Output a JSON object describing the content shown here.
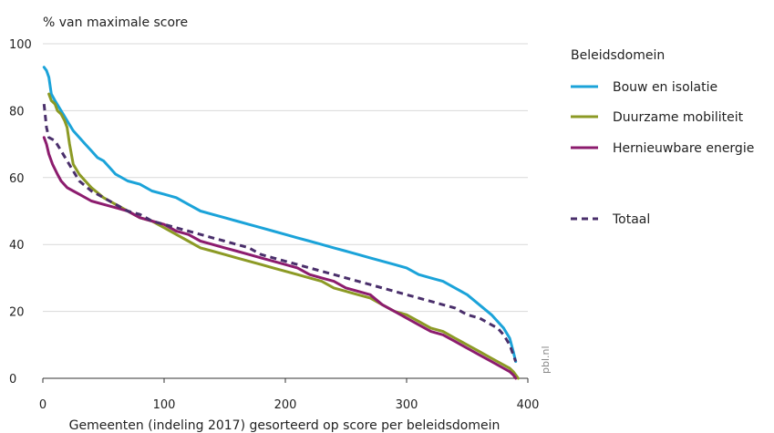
{
  "chart_data": {
    "type": "line",
    "ylabel": "% van maximale score",
    "xlabel": "Gemeenten (indeling 2017) gesorteerd op score per beleidsdomein",
    "xlim": [
      0,
      400
    ],
    "ylim": [
      0,
      100
    ],
    "x_ticks": [
      0,
      100,
      200,
      300,
      400
    ],
    "y_ticks": [
      0,
      20,
      40,
      60,
      80,
      100
    ],
    "grid": "horizontal",
    "legend_position": "right",
    "legend_title": "Beleidsdomein",
    "credit": "pbl.nl",
    "series": [
      {
        "name": "Bouw en isolatie",
        "color": "#1ba3d9",
        "dash": false,
        "points": [
          [
            1,
            93
          ],
          [
            3,
            92
          ],
          [
            5,
            90
          ],
          [
            7,
            85
          ],
          [
            10,
            83
          ],
          [
            15,
            80
          ],
          [
            20,
            77
          ],
          [
            25,
            74
          ],
          [
            30,
            72
          ],
          [
            35,
            70
          ],
          [
            40,
            68
          ],
          [
            45,
            66
          ],
          [
            50,
            65
          ],
          [
            55,
            63
          ],
          [
            60,
            61
          ],
          [
            70,
            59
          ],
          [
            80,
            58
          ],
          [
            90,
            56
          ],
          [
            100,
            55
          ],
          [
            110,
            54
          ],
          [
            120,
            52
          ],
          [
            130,
            50
          ],
          [
            140,
            49
          ],
          [
            150,
            48
          ],
          [
            160,
            47
          ],
          [
            170,
            46
          ],
          [
            180,
            45
          ],
          [
            190,
            44
          ],
          [
            200,
            43
          ],
          [
            210,
            42
          ],
          [
            220,
            41
          ],
          [
            230,
            40
          ],
          [
            240,
            39
          ],
          [
            250,
            38
          ],
          [
            260,
            37
          ],
          [
            270,
            36
          ],
          [
            280,
            35
          ],
          [
            290,
            34
          ],
          [
            300,
            33
          ],
          [
            310,
            31
          ],
          [
            320,
            30
          ],
          [
            330,
            29
          ],
          [
            340,
            27
          ],
          [
            350,
            25
          ],
          [
            360,
            22
          ],
          [
            370,
            19
          ],
          [
            380,
            15
          ],
          [
            385,
            12
          ],
          [
            388,
            8
          ],
          [
            390,
            5
          ]
        ]
      },
      {
        "name": "Duurzame mobiliteit",
        "color": "#8c9a25",
        "dash": false,
        "points": [
          [
            5,
            85
          ],
          [
            7,
            83
          ],
          [
            10,
            82
          ],
          [
            12,
            80
          ],
          [
            15,
            79
          ],
          [
            18,
            77
          ],
          [
            20,
            75
          ],
          [
            22,
            70
          ],
          [
            25,
            64
          ],
          [
            30,
            61
          ],
          [
            35,
            59
          ],
          [
            40,
            57
          ],
          [
            50,
            54
          ],
          [
            60,
            52
          ],
          [
            70,
            50
          ],
          [
            80,
            48
          ],
          [
            90,
            47
          ],
          [
            100,
            45
          ],
          [
            110,
            43
          ],
          [
            120,
            41
          ],
          [
            130,
            39
          ],
          [
            140,
            38
          ],
          [
            150,
            37
          ],
          [
            160,
            36
          ],
          [
            170,
            35
          ],
          [
            180,
            34
          ],
          [
            190,
            33
          ],
          [
            200,
            32
          ],
          [
            210,
            31
          ],
          [
            220,
            30
          ],
          [
            230,
            29
          ],
          [
            240,
            27
          ],
          [
            250,
            26
          ],
          [
            260,
            25
          ],
          [
            270,
            24
          ],
          [
            280,
            22
          ],
          [
            290,
            20
          ],
          [
            300,
            19
          ],
          [
            310,
            17
          ],
          [
            320,
            15
          ],
          [
            330,
            14
          ],
          [
            340,
            12
          ],
          [
            350,
            10
          ],
          [
            360,
            8
          ],
          [
            370,
            6
          ],
          [
            380,
            4
          ],
          [
            385,
            3
          ],
          [
            388,
            2
          ],
          [
            390,
            1
          ],
          [
            392,
            0
          ]
        ]
      },
      {
        "name": "Hernieuwbare energie",
        "color": "#8c1c6e",
        "dash": false,
        "points": [
          [
            1,
            72
          ],
          [
            3,
            70
          ],
          [
            5,
            67
          ],
          [
            8,
            64
          ],
          [
            12,
            61
          ],
          [
            15,
            59
          ],
          [
            20,
            57
          ],
          [
            25,
            56
          ],
          [
            30,
            55
          ],
          [
            40,
            53
          ],
          [
            50,
            52
          ],
          [
            60,
            51
          ],
          [
            70,
            50
          ],
          [
            80,
            48
          ],
          [
            90,
            47
          ],
          [
            100,
            46
          ],
          [
            110,
            44
          ],
          [
            120,
            43
          ],
          [
            130,
            41
          ],
          [
            140,
            40
          ],
          [
            150,
            39
          ],
          [
            160,
            38
          ],
          [
            170,
            37
          ],
          [
            180,
            36
          ],
          [
            190,
            35
          ],
          [
            200,
            34
          ],
          [
            210,
            33
          ],
          [
            220,
            31
          ],
          [
            230,
            30
          ],
          [
            240,
            29
          ],
          [
            250,
            27
          ],
          [
            260,
            26
          ],
          [
            270,
            25
          ],
          [
            280,
            22
          ],
          [
            290,
            20
          ],
          [
            300,
            18
          ],
          [
            310,
            16
          ],
          [
            320,
            14
          ],
          [
            330,
            13
          ],
          [
            340,
            11
          ],
          [
            350,
            9
          ],
          [
            360,
            7
          ],
          [
            370,
            5
          ],
          [
            380,
            3
          ],
          [
            385,
            2
          ],
          [
            388,
            1
          ],
          [
            390,
            0
          ]
        ]
      },
      {
        "name": "Totaal",
        "color": "#4a2f6b",
        "dash": true,
        "points": [
          [
            1,
            82
          ],
          [
            3,
            75
          ],
          [
            5,
            72
          ],
          [
            10,
            71
          ],
          [
            15,
            68
          ],
          [
            20,
            65
          ],
          [
            25,
            62
          ],
          [
            30,
            59
          ],
          [
            40,
            56
          ],
          [
            50,
            54
          ],
          [
            60,
            52
          ],
          [
            70,
            50
          ],
          [
            80,
            49
          ],
          [
            90,
            47
          ],
          [
            100,
            46
          ],
          [
            110,
            45
          ],
          [
            120,
            44
          ],
          [
            130,
            43
          ],
          [
            140,
            42
          ],
          [
            150,
            41
          ],
          [
            160,
            40
          ],
          [
            170,
            39
          ],
          [
            180,
            37
          ],
          [
            190,
            36
          ],
          [
            200,
            35
          ],
          [
            210,
            34
          ],
          [
            220,
            33
          ],
          [
            230,
            32
          ],
          [
            240,
            31
          ],
          [
            250,
            30
          ],
          [
            260,
            29
          ],
          [
            270,
            28
          ],
          [
            280,
            27
          ],
          [
            290,
            26
          ],
          [
            300,
            25
          ],
          [
            310,
            24
          ],
          [
            320,
            23
          ],
          [
            330,
            22
          ],
          [
            340,
            21
          ],
          [
            350,
            19
          ],
          [
            360,
            18
          ],
          [
            370,
            16
          ],
          [
            375,
            15
          ],
          [
            380,
            13
          ],
          [
            385,
            10
          ],
          [
            388,
            7
          ],
          [
            390,
            5
          ]
        ]
      }
    ]
  }
}
